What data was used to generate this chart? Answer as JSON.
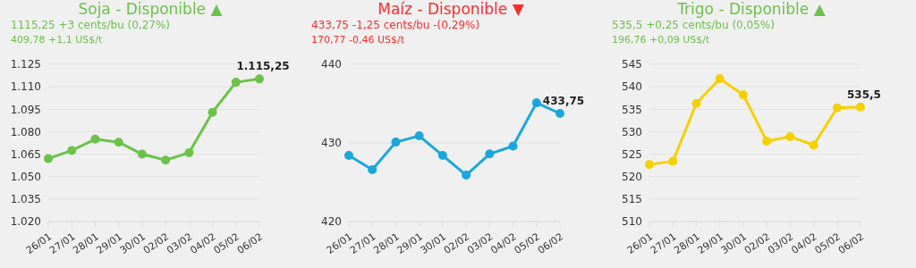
{
  "chart_data": [
    {
      "type": "line",
      "title": "Soja - Disponible ▲",
      "subtitle": "1115,25 +3 cents/bu (0,27%)",
      "annotations": [
        "409,78 +1,1 US$/t"
      ],
      "categories": [
        "26/01",
        "27/01",
        "28/01",
        "29/01",
        "30/01",
        "02/02",
        "03/02",
        "04/02",
        "05/02",
        "06/02"
      ],
      "series": [
        {
          "color": "#6cc24a",
          "values": [
            1062,
            1067.5,
            1075,
            1073,
            1065,
            1061,
            1066,
            1093,
            1113,
            1115.25
          ],
          "value_labels": [
            null,
            null,
            null,
            null,
            null,
            null,
            null,
            null,
            null,
            "1.115,25"
          ]
        }
      ],
      "ylim": [
        1020,
        1125
      ],
      "yticks": [
        {
          "value": 1020,
          "label": "1.020"
        },
        {
          "value": 1035,
          "label": "1.035"
        },
        {
          "value": 1050,
          "label": "1.050"
        },
        {
          "value": 1065,
          "label": "1.065"
        },
        {
          "value": 1080,
          "label": "1.080"
        },
        {
          "value": 1095,
          "label": "1.095"
        },
        {
          "value": 1110,
          "label": "1.110"
        },
        {
          "value": 1125,
          "label": "1.125"
        }
      ],
      "grid": "y",
      "marker": "circle",
      "line_style": "solid",
      "legend": false
    },
    {
      "type": "line",
      "title": "Maíz - Disponible ▼",
      "subtitle": "433,75 -1,25 cents/bu -(0,29%)",
      "annotations": [
        "170,77 -0,46 US$/t"
      ],
      "categories": [
        "26/01",
        "27/01",
        "28/01",
        "29/01",
        "30/01",
        "02/02",
        "03/02",
        "04/02",
        "05/02",
        "06/02"
      ],
      "series": [
        {
          "color": "#1aa7dc",
          "values": [
            428.4,
            426.6,
            430.1,
            430.9,
            428.4,
            425.9,
            428.6,
            429.6,
            435.1,
            433.75
          ],
          "value_labels": [
            null,
            null,
            null,
            null,
            null,
            null,
            null,
            null,
            null,
            "433,75"
          ]
        }
      ],
      "ylim": [
        420,
        440
      ],
      "yticks": [
        420,
        430,
        440
      ],
      "grid": "y",
      "marker": "circle",
      "line_style": "solid",
      "legend": false
    },
    {
      "type": "line",
      "title": "Trigo - Disponible ▲",
      "subtitle": "535,5 +0,25 cents/bu (0,05%)",
      "annotations": [
        "196,76 +0,09 US$/t"
      ],
      "categories": [
        "26/01",
        "27/01",
        "28/01",
        "29/01",
        "30/01",
        "02/02",
        "03/02",
        "04/02",
        "05/02",
        "06/02"
      ],
      "series": [
        {
          "color": "#f5d000",
          "values": [
            522.7,
            523.4,
            536.3,
            541.8,
            538.2,
            527.9,
            528.9,
            527,
            535.3,
            535.5
          ],
          "value_labels": [
            null,
            null,
            null,
            null,
            null,
            null,
            null,
            null,
            null,
            "535,5"
          ]
        }
      ],
      "ylim": [
        510,
        545
      ],
      "yticks": [
        510,
        515,
        520,
        525,
        530,
        535,
        540,
        545
      ],
      "grid": "y",
      "marker": "circle",
      "line_style": "solid",
      "legend": false
    }
  ]
}
